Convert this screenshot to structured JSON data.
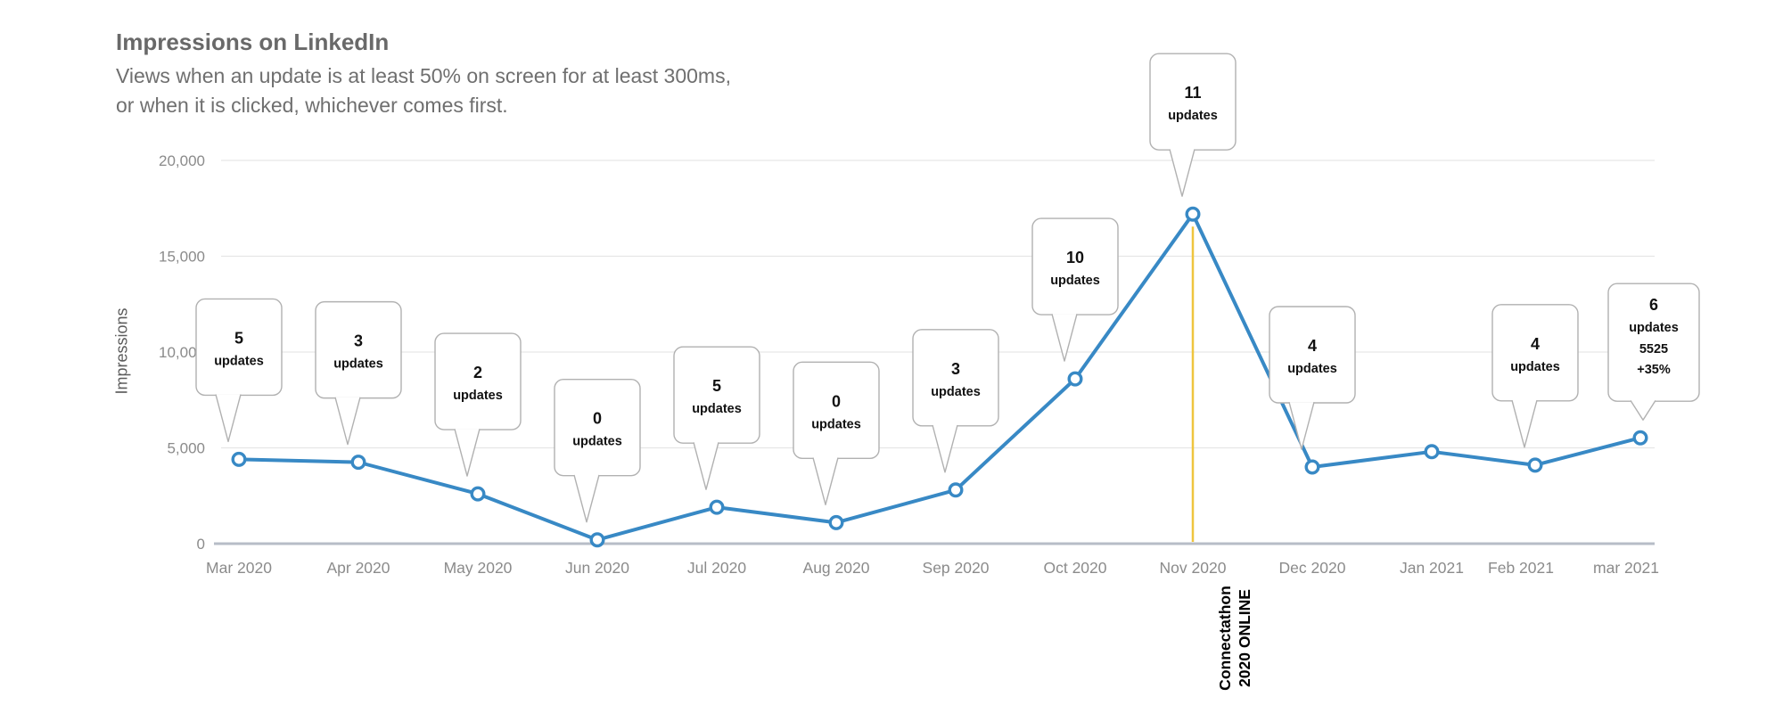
{
  "header": {
    "title": "Impressions on LinkedIn",
    "subtitle_line1": "Views when an update is at least 50% on screen for at least 300ms,",
    "subtitle_line2": "or when it is clicked, whichever comes first."
  },
  "chart_data": {
    "type": "line",
    "title": "Impressions on LinkedIn",
    "ylabel": "Impressions",
    "xlabel": "",
    "ylim": [
      0,
      20000
    ],
    "grid": true,
    "legend_position": "none",
    "yticks": [
      0,
      5000,
      10000,
      15000,
      20000
    ],
    "ytick_labels": [
      "0",
      "5,000",
      "10,000",
      "15,000",
      "20,000"
    ],
    "categories": [
      "Mar 2020",
      "Apr 2020",
      "May 2020",
      "Jun 2020",
      "Jul 2020",
      "Aug 2020",
      "Sep 2020",
      "Oct 2020",
      "Nov 2020",
      "Dec 2020",
      "Jan 2021",
      "Feb 2021",
      "mar 2021"
    ],
    "series": [
      {
        "name": "Impressions",
        "values": [
          4400,
          4250,
          2600,
          200,
          1900,
          1100,
          2800,
          8600,
          17200,
          4000,
          4800,
          4100,
          5525
        ]
      }
    ],
    "line_color": "#3889c5",
    "marker_style": "open-circle",
    "callouts": [
      {
        "category": "Mar 2020",
        "lines": [
          "5",
          "updates"
        ]
      },
      {
        "category": "Apr 2020",
        "lines": [
          "3",
          "updates"
        ]
      },
      {
        "category": "May 2020",
        "lines": [
          "2",
          "updates"
        ]
      },
      {
        "category": "Jun 2020",
        "lines": [
          "0",
          "updates"
        ]
      },
      {
        "category": "Jul 2020",
        "lines": [
          "5",
          "updates"
        ]
      },
      {
        "category": "Aug 2020",
        "lines": [
          "0",
          "updates"
        ]
      },
      {
        "category": "Sep 2020",
        "lines": [
          "3",
          "updates"
        ]
      },
      {
        "category": "Oct 2020",
        "lines": [
          "10",
          "updates"
        ]
      },
      {
        "category": "Nov 2020",
        "lines": [
          "11",
          "updates"
        ]
      },
      {
        "category": "Dec 2020",
        "lines": [
          "4",
          "updates"
        ]
      },
      {
        "category": "Feb 2021",
        "lines": [
          "4",
          "updates"
        ]
      },
      {
        "category": "mar 2021",
        "lines": [
          "6",
          "updates",
          "5525",
          "+35%"
        ]
      }
    ],
    "annotation": {
      "category": "Nov 2020",
      "lines": [
        "Connectathon",
        "2020 ONLINE"
      ],
      "line_color": "#efc53e"
    }
  },
  "colors": {
    "line": "#3889c5",
    "event_line": "#efc53e",
    "grid": "#e6e6e6",
    "zero_axis": "#b7bdc7",
    "tick_text": "#8b8b8b",
    "callout_border": "#b1b1b1",
    "callout_text": "#111111"
  }
}
